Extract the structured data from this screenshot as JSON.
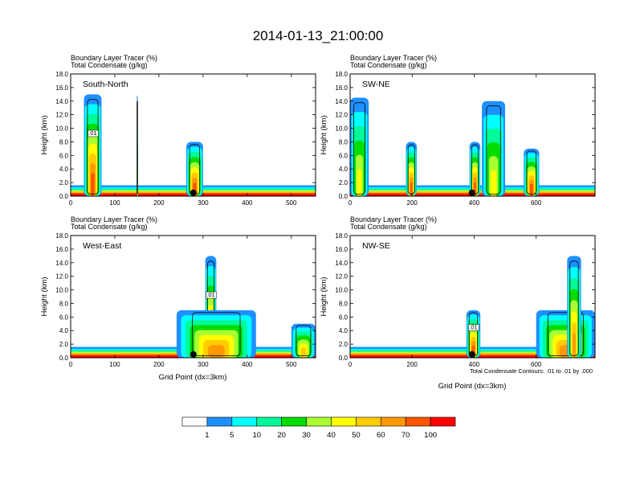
{
  "chart_data": {
    "type": "heatmap",
    "title": "2014-01-13_21:00:00",
    "shaded_variable": "Boundary Layer Tracer",
    "shaded_units": "(%)",
    "contour_variable": "Total Condensate",
    "contour_units": "(g/kg)",
    "contour_info": "Total Condensate Contours: .01 to .01 by .000",
    "xlabel": "Grid Point (dx=3km)",
    "ylabel": "Height (km)",
    "ylim": [
      0,
      18
    ],
    "y_ticks": [
      "0.0",
      "2.0",
      "4.0",
      "6.0",
      "8.0",
      "10.0",
      "12.0",
      "14.0",
      "16.0",
      "18.0"
    ],
    "colorbar": {
      "colors": [
        "#ffffff",
        "#1e90ff",
        "#00ffff",
        "#00fa9a",
        "#00dd00",
        "#aaff33",
        "#ffff00",
        "#ffcc00",
        "#ff9900",
        "#ff5500",
        "#ff0000"
      ],
      "labels": [
        "1",
        "5",
        "10",
        "20",
        "30",
        "40",
        "50",
        "60",
        "70",
        "100"
      ]
    },
    "panels": [
      {
        "name": "South-North",
        "xlim": [
          0,
          555
        ],
        "x_ticks": [
          "0",
          "100",
          "200",
          "300",
          "400",
          "500"
        ],
        "x_tick_values": [
          0,
          100,
          200,
          300,
          400,
          500
        ],
        "marker_x": 278,
        "contour_labels": [
          ".01"
        ],
        "plumes": [
          {
            "x0": 30,
            "x1": 70,
            "top": 15.0,
            "level": 5
          },
          {
            "x0": 262,
            "x1": 300,
            "top": 8.0,
            "level": 5
          },
          {
            "x0": 150,
            "x1": 152,
            "top": 14.8,
            "level": 1
          }
        ]
      },
      {
        "name": "SW-NE",
        "xlim": [
          0,
          790
        ],
        "x_ticks": [
          "0",
          "200",
          "400",
          "600"
        ],
        "x_tick_values": [
          0,
          200,
          400,
          600
        ],
        "marker_x": 393,
        "contour_labels": [],
        "plumes": [
          {
            "x0": 180,
            "x1": 215,
            "top": 8.0,
            "level": 5
          },
          {
            "x0": 385,
            "x1": 420,
            "top": 8.0,
            "level": 5
          },
          {
            "x0": 560,
            "x1": 610,
            "top": 7.0,
            "level": 5
          },
          {
            "x0": 0,
            "x1": 60,
            "top": 14.5,
            "level": 2
          },
          {
            "x0": 425,
            "x1": 500,
            "top": 14.0,
            "level": 2
          }
        ]
      },
      {
        "name": "West-East",
        "xlim": [
          0,
          555
        ],
        "x_ticks": [
          "0",
          "100",
          "200",
          "300",
          "400",
          "500"
        ],
        "x_tick_values": [
          0,
          100,
          200,
          300,
          400,
          500
        ],
        "marker_x": 278,
        "contour_labels": [
          ".01"
        ],
        "plumes": [
          {
            "x0": 305,
            "x1": 330,
            "top": 15.0,
            "level": 5
          },
          {
            "x0": 240,
            "x1": 420,
            "top": 7.0,
            "level": 4
          },
          {
            "x0": 500,
            "x1": 555,
            "top": 5.0,
            "level": 3
          }
        ]
      },
      {
        "name": "NW-SE",
        "xlim": [
          0,
          790
        ],
        "x_ticks": [
          "0",
          "200",
          "400",
          "600"
        ],
        "x_tick_values": [
          0,
          200,
          400,
          600
        ],
        "marker_x": 393,
        "contour_labels": [
          ".01"
        ],
        "plumes": [
          {
            "x0": 375,
            "x1": 420,
            "top": 7.0,
            "level": 5
          },
          {
            "x0": 600,
            "x1": 790,
            "top": 7.0,
            "level": 4
          },
          {
            "x0": 700,
            "x1": 745,
            "top": 15.0,
            "level": 4
          }
        ]
      }
    ]
  }
}
